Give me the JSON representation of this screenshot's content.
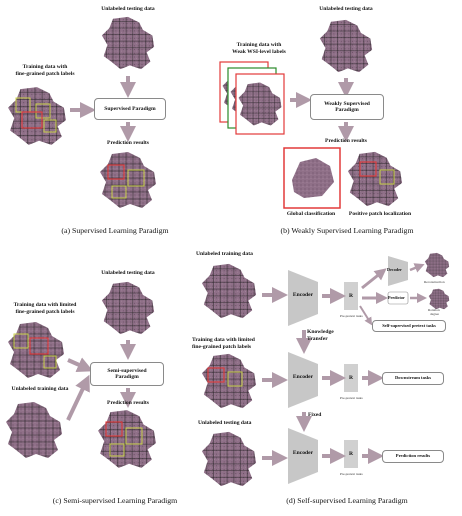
{
  "panel_a": {
    "unlabeled_testing": "Unlabeled testing data",
    "training_line1": "Training data with",
    "training_line2": "fine-grained patch labels",
    "paradigm": "Supervised Paradigm",
    "prediction": "Prediction results",
    "caption": "(a) Supervised Learning Paradigm"
  },
  "panel_b": {
    "unlabeled_testing": "Unlabeled testing data",
    "training_line1": "Training data with",
    "training_line2": "Weak WSI-level labels",
    "paradigm_line1": "Weakly Supervised",
    "paradigm_line2": "Paradigm",
    "prediction": "Prediction results",
    "global": "Global classification",
    "patch_loc": "Positive patch localization",
    "caption": "(b) Weakly Supervised Learning Paradigm"
  },
  "panel_c": {
    "unlabeled_testing": "Unlabeled testing data",
    "training_line1": "Training data with limited",
    "training_line2": "fine-grained patch labels",
    "unlabeled_training": "Unlabeled training data",
    "paradigm_line1": "Semi-supervised",
    "paradigm_line2": "Paradigm",
    "prediction": "Prediction results",
    "caption": "(c) Semi-supervised Learning Paradigm"
  },
  "panel_d": {
    "unlabeled_training": "Unlabeled training data",
    "training_line1": "Training data with limited",
    "training_line2": "fine-grained patch labels",
    "unlabeled_testing": "Unlabeled testing data",
    "encoder": "Encoder",
    "r": "R",
    "pretext_small": "Pre-pretext tasks",
    "decoder": "Decoder",
    "predictor": "Predictor",
    "self_supervised": "Self-supervised pretext tasks",
    "downstream": "Downstream tasks",
    "prediction_results": "Prediction results",
    "knowledge_line1": "Knowledge",
    "knowledge_line2": "Transfer",
    "fixed": "Fixed",
    "recon_small": "Reconstruction",
    "rotate_small_1": "Rotation",
    "rotate_small_2": "degree",
    "caption": "(d) Self-supervised Learning Paradigm"
  },
  "colors": {
    "tissue": "#8f7088",
    "arrow": "#b09aa8",
    "annotation": "#c8d14a",
    "positive": "#e23a3a",
    "encoder_fill": "#c7c7c7"
  }
}
